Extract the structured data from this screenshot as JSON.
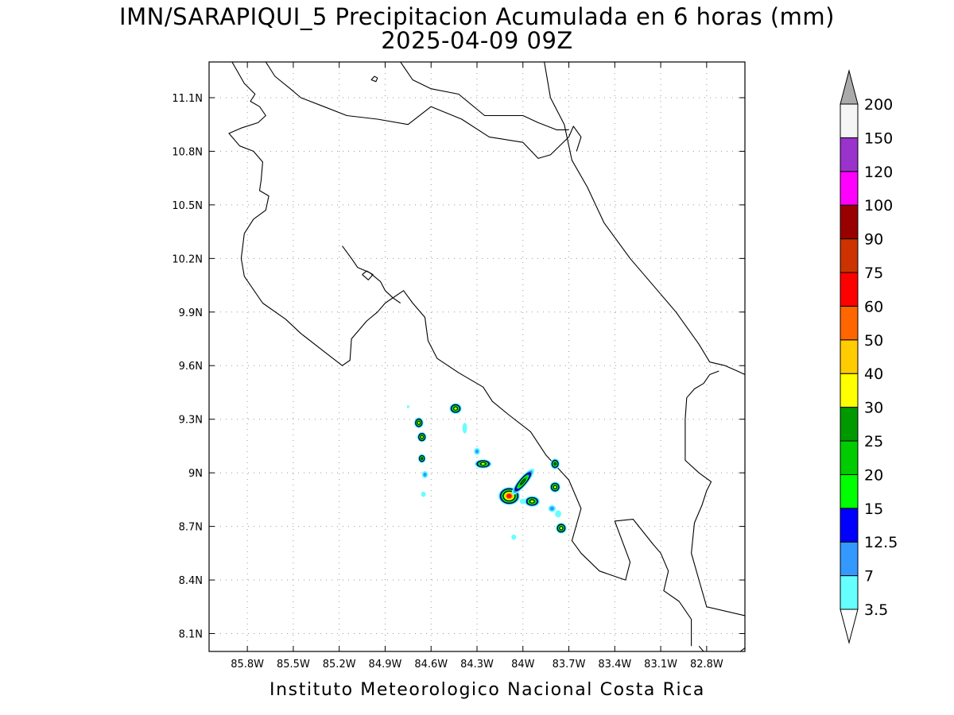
{
  "title": {
    "line1": "IMN/SARAPIQUI_5 Precipitacion Acumulada en 6 horas (mm)",
    "line2": "2025-04-09 09Z"
  },
  "footer": "Instituto Meteorologico Nacional Costa Rica",
  "map": {
    "lon_range": [
      -86.05,
      -82.55
    ],
    "lat_range": [
      8.0,
      11.3
    ],
    "lon_ticks": [
      {
        "value": -85.8,
        "label": "85.8W"
      },
      {
        "value": -85.5,
        "label": "85.5W"
      },
      {
        "value": -85.2,
        "label": "85.2W"
      },
      {
        "value": -84.9,
        "label": "84.9W"
      },
      {
        "value": -84.6,
        "label": "84.6W"
      },
      {
        "value": -84.3,
        "label": "84.3W"
      },
      {
        "value": -84.0,
        "label": "84W"
      },
      {
        "value": -83.7,
        "label": "83.7W"
      },
      {
        "value": -83.4,
        "label": "83.4W"
      },
      {
        "value": -83.1,
        "label": "83.1W"
      },
      {
        "value": -82.8,
        "label": "82.8W"
      }
    ],
    "lat_ticks": [
      {
        "value": 11.1,
        "label": "11.1N"
      },
      {
        "value": 10.8,
        "label": "10.8N"
      },
      {
        "value": 10.5,
        "label": "10.5N"
      },
      {
        "value": 10.2,
        "label": "10.2N"
      },
      {
        "value": 9.9,
        "label": "9.9N"
      },
      {
        "value": 9.6,
        "label": "9.6N"
      },
      {
        "value": 9.3,
        "label": "9.3N"
      },
      {
        "value": 9.0,
        "label": "9N"
      },
      {
        "value": 8.7,
        "label": "8.7N"
      },
      {
        "value": 8.4,
        "label": "8.4N"
      },
      {
        "value": 8.1,
        "label": "8.1N"
      }
    ],
    "grid": "dotted"
  },
  "colorbar": {
    "labels": [
      "3.5",
      "7",
      "12.5",
      "15",
      "20",
      "25",
      "30",
      "40",
      "50",
      "60",
      "75",
      "90",
      "100",
      "120",
      "150",
      "200"
    ],
    "colors": [
      "#66ffff",
      "#3399ff",
      "#0000ff",
      "#00ff00",
      "#00cc00",
      "#009900",
      "#ffff00",
      "#ffcc00",
      "#ff6600",
      "#ff0000",
      "#cc3300",
      "#990000",
      "#ff00ff",
      "#9933cc",
      "#f5f5f5"
    ],
    "over_color": "#aaaaaa",
    "under_color": "#ffffff"
  },
  "precip_cells": [
    {
      "lon": -84.09,
      "lat": 8.87,
      "rx": 0.07,
      "ry": 0.05,
      "max": 75
    },
    {
      "lon": -84.0,
      "lat": 8.95,
      "rx": 0.11,
      "ry": 0.025,
      "max": 25,
      "rot": -50
    },
    {
      "lon": -83.94,
      "lat": 8.84,
      "rx": 0.05,
      "ry": 0.03,
      "max": 30
    },
    {
      "lon": -84.26,
      "lat": 9.05,
      "rx": 0.055,
      "ry": 0.025,
      "max": 30
    },
    {
      "lon": -84.44,
      "lat": 9.36,
      "rx": 0.04,
      "ry": 0.03,
      "max": 30
    },
    {
      "lon": -84.68,
      "lat": 9.28,
      "rx": 0.03,
      "ry": 0.03,
      "max": 30
    },
    {
      "lon": -84.66,
      "lat": 9.2,
      "rx": 0.03,
      "ry": 0.028,
      "max": 30
    },
    {
      "lon": -84.66,
      "lat": 9.08,
      "rx": 0.025,
      "ry": 0.025,
      "max": 25
    },
    {
      "lon": -83.79,
      "lat": 8.92,
      "rx": 0.035,
      "ry": 0.03,
      "max": 30
    },
    {
      "lon": -83.79,
      "lat": 9.05,
      "rx": 0.03,
      "ry": 0.03,
      "max": 25
    },
    {
      "lon": -83.75,
      "lat": 8.69,
      "rx": 0.035,
      "ry": 0.03,
      "max": 30
    },
    {
      "lon": -84.3,
      "lat": 9.12,
      "rx": 0.02,
      "ry": 0.02,
      "max": 7
    },
    {
      "lon": -84.64,
      "lat": 8.99,
      "rx": 0.02,
      "ry": 0.02,
      "max": 7
    },
    {
      "lon": -84.65,
      "lat": 8.88,
      "rx": 0.015,
      "ry": 0.015,
      "max": 3.5
    },
    {
      "lon": -83.81,
      "lat": 8.8,
      "rx": 0.025,
      "ry": 0.02,
      "max": 7
    },
    {
      "lon": -83.77,
      "lat": 8.77,
      "rx": 0.02,
      "ry": 0.02,
      "max": 3.5
    },
    {
      "lon": -84.38,
      "lat": 9.25,
      "rx": 0.015,
      "ry": 0.03,
      "max": 3.5
    },
    {
      "lon": -84.06,
      "lat": 8.64,
      "rx": 0.015,
      "ry": 0.015,
      "max": 3.5
    },
    {
      "lon": -84.75,
      "lat": 9.37,
      "rx": 0.008,
      "ry": 0.008,
      "max": 3.5
    },
    {
      "lon": -84.0,
      "lat": 8.84,
      "rx": 0.02,
      "ry": 0.015,
      "max": 3.5
    }
  ],
  "coastlines": [
    [
      [
        -85.9,
        11.3
      ],
      [
        -85.82,
        11.18
      ],
      [
        -85.75,
        11.12
      ],
      [
        -85.78,
        11.08
      ],
      [
        -85.72,
        11.05
      ],
      [
        -85.68,
        11.0
      ],
      [
        -85.73,
        10.96
      ],
      [
        -85.84,
        10.93
      ],
      [
        -85.92,
        10.9
      ],
      [
        -85.85,
        10.83
      ],
      [
        -85.76,
        10.8
      ],
      [
        -85.7,
        10.74
      ],
      [
        -85.71,
        10.64
      ],
      [
        -85.72,
        10.58
      ],
      [
        -85.66,
        10.55
      ],
      [
        -85.68,
        10.47
      ],
      [
        -85.76,
        10.42
      ],
      [
        -85.82,
        10.34
      ],
      [
        -85.84,
        10.2
      ],
      [
        -85.82,
        10.1
      ],
      [
        -85.7,
        9.95
      ],
      [
        -85.55,
        9.86
      ],
      [
        -85.45,
        9.78
      ],
      [
        -85.3,
        9.68
      ],
      [
        -85.18,
        9.6
      ],
      [
        -85.13,
        9.63
      ],
      [
        -85.12,
        9.75
      ],
      [
        -85.02,
        9.85
      ],
      [
        -84.95,
        9.9
      ],
      [
        -84.9,
        9.95
      ],
      [
        -84.78,
        10.02
      ],
      [
        -84.72,
        9.95
      ],
      [
        -84.64,
        9.87
      ],
      [
        -84.62,
        9.74
      ],
      [
        -84.56,
        9.64
      ],
      [
        -84.42,
        9.56
      ],
      [
        -84.26,
        9.48
      ],
      [
        -84.2,
        9.4
      ],
      [
        -84.1,
        9.33
      ],
      [
        -83.95,
        9.23
      ],
      [
        -83.85,
        9.1
      ],
      [
        -83.7,
        8.96
      ],
      [
        -83.62,
        8.8
      ],
      [
        -83.68,
        8.62
      ],
      [
        -83.62,
        8.55
      ],
      [
        -83.5,
        8.45
      ],
      [
        -83.33,
        8.4
      ],
      [
        -83.3,
        8.5
      ],
      [
        -83.4,
        8.73
      ],
      [
        -83.28,
        8.74
      ],
      [
        -83.15,
        8.6
      ],
      [
        -83.1,
        8.55
      ],
      [
        -83.05,
        8.45
      ],
      [
        -83.08,
        8.34
      ],
      [
        -82.98,
        8.28
      ],
      [
        -82.9,
        8.18
      ],
      [
        -82.9,
        8.03
      ]
    ],
    [
      [
        -85.18,
        10.27
      ],
      [
        -85.12,
        10.2
      ],
      [
        -85.08,
        10.15
      ],
      [
        -85.0,
        10.12
      ],
      [
        -84.93,
        10.07
      ],
      [
        -84.9,
        10.02
      ],
      [
        -84.85,
        9.98
      ],
      [
        -84.8,
        9.95
      ]
    ],
    [
      [
        -85.05,
        10.11
      ],
      [
        -85.02,
        10.13
      ],
      [
        -84.98,
        10.11
      ],
      [
        -85.01,
        10.08
      ],
      [
        -85.05,
        10.11
      ]
    ],
    [
      [
        -84.97,
        11.22
      ],
      [
        -84.95,
        11.21
      ],
      [
        -84.96,
        11.19
      ],
      [
        -84.99,
        11.2
      ],
      [
        -84.97,
        11.22
      ]
    ],
    [
      [
        -85.68,
        11.3
      ],
      [
        -85.62,
        11.22
      ],
      [
        -85.52,
        11.15
      ],
      [
        -85.45,
        11.1
      ],
      [
        -85.3,
        11.05
      ],
      [
        -85.15,
        11.0
      ],
      [
        -84.95,
        10.98
      ],
      [
        -84.75,
        10.95
      ],
      [
        -84.6,
        11.05
      ],
      [
        -84.4,
        10.98
      ],
      [
        -84.22,
        10.88
      ],
      [
        -84.0,
        10.85
      ],
      [
        -83.9,
        10.76
      ],
      [
        -83.82,
        10.78
      ],
      [
        -83.7,
        10.88
      ],
      [
        -83.67,
        10.94
      ],
      [
        -83.62,
        10.88
      ],
      [
        -83.65,
        10.8
      ]
    ],
    [
      [
        -84.8,
        11.3
      ],
      [
        -84.72,
        11.2
      ],
      [
        -84.6,
        11.15
      ],
      [
        -84.42,
        11.12
      ],
      [
        -84.25,
        11.0
      ],
      [
        -84.0,
        11.0
      ],
      [
        -83.9,
        10.96
      ],
      [
        -83.78,
        10.92
      ],
      [
        -83.7,
        10.92
      ]
    ],
    [
      [
        -83.86,
        11.3
      ],
      [
        -83.82,
        11.1
      ],
      [
        -83.73,
        10.95
      ],
      [
        -83.68,
        10.75
      ],
      [
        -83.58,
        10.6
      ],
      [
        -83.47,
        10.4
      ],
      [
        -83.3,
        10.2
      ],
      [
        -83.1,
        10.0
      ],
      [
        -83.0,
        9.9
      ],
      [
        -82.85,
        9.72
      ],
      [
        -82.78,
        9.62
      ],
      [
        -82.68,
        9.6
      ],
      [
        -82.6,
        9.57
      ],
      [
        -82.55,
        9.55
      ]
    ],
    [
      [
        -82.72,
        9.57
      ],
      [
        -82.78,
        9.55
      ],
      [
        -82.82,
        9.5
      ],
      [
        -82.88,
        9.47
      ],
      [
        -82.93,
        9.42
      ],
      [
        -82.94,
        9.3
      ],
      [
        -82.94,
        9.07
      ],
      [
        -82.85,
        9.0
      ],
      [
        -82.77,
        8.95
      ],
      [
        -82.8,
        8.9
      ],
      [
        -82.83,
        8.82
      ],
      [
        -82.88,
        8.72
      ],
      [
        -82.9,
        8.55
      ],
      [
        -82.85,
        8.4
      ],
      [
        -82.8,
        8.25
      ],
      [
        -82.55,
        8.2
      ]
    ],
    [
      [
        -82.55,
        8.02
      ],
      [
        -82.58,
        8.0
      ]
    ],
    [
      [
        -82.85,
        8.03
      ],
      [
        -82.82,
        8.0
      ]
    ]
  ]
}
